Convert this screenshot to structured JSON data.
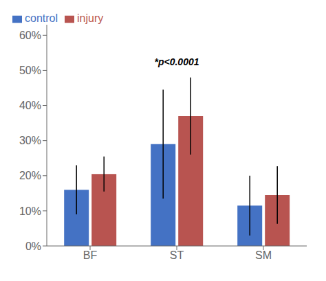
{
  "chart_data": {
    "type": "bar",
    "categories": [
      "BF",
      "ST",
      "SM"
    ],
    "series": [
      {
        "name": "control",
        "color": "#4472C4",
        "values": [
          0.16,
          0.29,
          0.115
        ],
        "errors": [
          0.07,
          0.155,
          0.085
        ]
      },
      {
        "name": "injury",
        "color": "#B85450",
        "values": [
          0.205,
          0.37,
          0.145
        ],
        "errors": [
          0.05,
          0.11,
          0.082
        ]
      }
    ],
    "ylim": [
      0,
      0.63
    ],
    "yticks": [
      {
        "value": 0.0,
        "label": "0%"
      },
      {
        "value": 0.1,
        "label": "10%"
      },
      {
        "value": 0.2,
        "label": "20%"
      },
      {
        "value": 0.3,
        "label": "30%"
      },
      {
        "value": 0.4,
        "label": "40%"
      },
      {
        "value": 0.5,
        "label": "50%"
      },
      {
        "value": 0.6,
        "label": "60%"
      }
    ],
    "annotations": [
      {
        "text": "*p<0.0001",
        "x": "ST",
        "y": 0.505
      }
    ],
    "legend": "upper left",
    "grid": false
  }
}
